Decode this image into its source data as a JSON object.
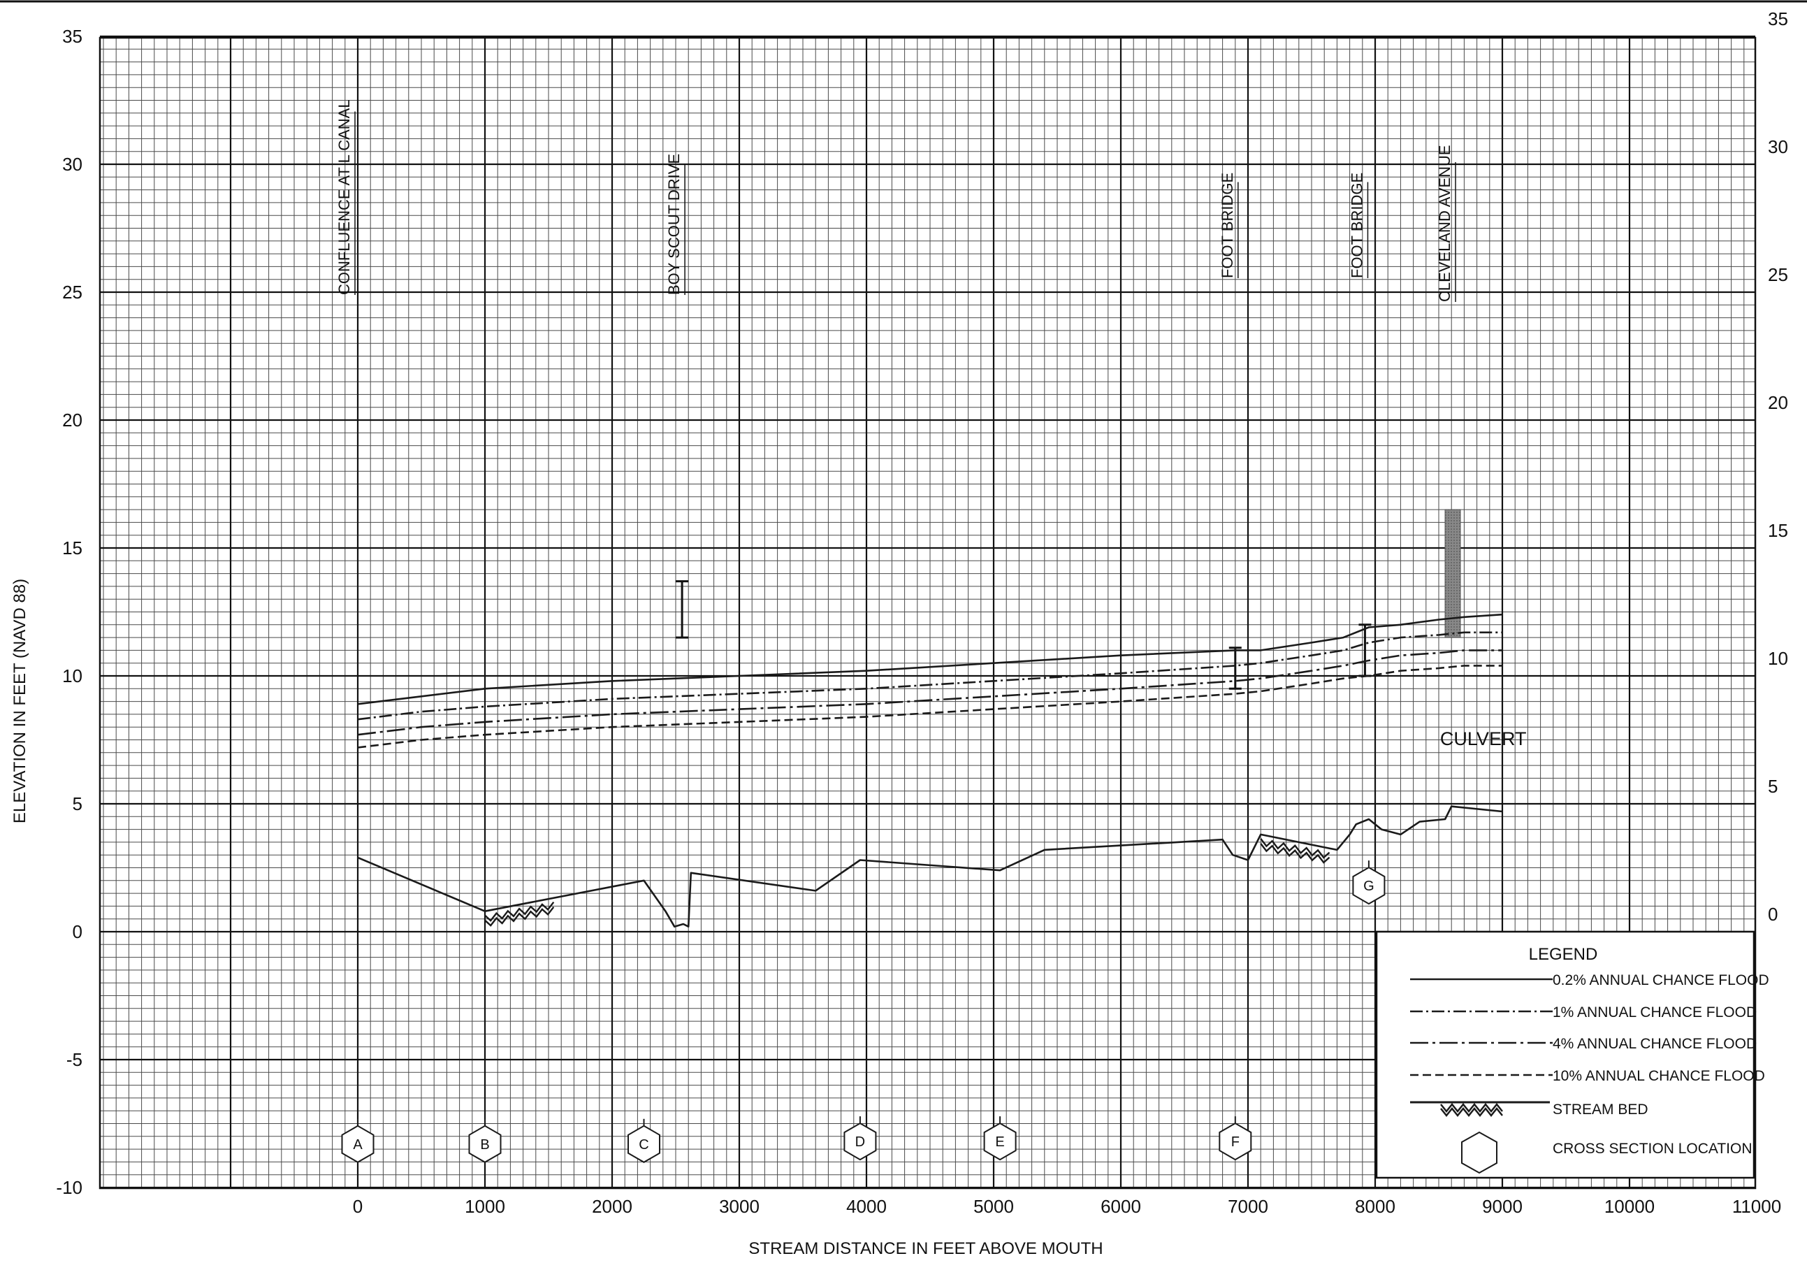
{
  "chart_data": {
    "type": "line",
    "title": "",
    "xlabel": "STREAM DISTANCE IN FEET ABOVE MOUTH",
    "ylabel": "ELEVATION IN FEET (NAVD 88)",
    "xlim": [
      -2050,
      11000
    ],
    "ylim": [
      -10,
      35
    ],
    "x_ticks": [
      0,
      1000,
      2000,
      3000,
      4000,
      5000,
      6000,
      7000,
      8000,
      9000,
      10000,
      11000
    ],
    "y_ticks": [
      -10,
      -5,
      0,
      5,
      10,
      15,
      20,
      25,
      30,
      35
    ],
    "y_tick_labels_left": [
      "-10",
      "-5",
      "0",
      "5",
      "10",
      "15",
      "20",
      "25",
      "30",
      "35"
    ],
    "y_tick_labels_right": [
      "",
      "",
      "0",
      "5",
      "10",
      "15",
      "20",
      "25",
      "30",
      "35"
    ],
    "grid": true,
    "series": [
      {
        "name": "0.2% ANNUAL CHANCE FLOOD",
        "style": "solid",
        "x": [
          0,
          500,
          1000,
          2000,
          3000,
          4000,
          5000,
          6000,
          6900,
          7100,
          7500,
          7750,
          7950,
          8200,
          8500,
          8700,
          9000
        ],
        "y": [
          8.9,
          9.2,
          9.5,
          9.8,
          10.0,
          10.2,
          10.5,
          10.8,
          11.0,
          11.0,
          11.3,
          11.5,
          11.9,
          12.0,
          12.2,
          12.3,
          12.4
        ]
      },
      {
        "name": "1% ANNUAL CHANCE FLOOD",
        "style": "dashdot",
        "x": [
          0,
          500,
          1000,
          2000,
          3000,
          4000,
          5000,
          6000,
          6900,
          7100,
          7500,
          7750,
          7950,
          8200,
          8500,
          8700,
          9000
        ],
        "y": [
          8.3,
          8.6,
          8.8,
          9.1,
          9.3,
          9.5,
          9.8,
          10.1,
          10.4,
          10.5,
          10.8,
          11.0,
          11.3,
          11.5,
          11.6,
          11.7,
          11.7
        ]
      },
      {
        "name": "4% ANNUAL CHANCE FLOOD",
        "style": "longdashdot",
        "x": [
          0,
          500,
          1000,
          2000,
          3000,
          4000,
          5000,
          6000,
          6900,
          7100,
          7500,
          7750,
          7950,
          8200,
          8500,
          8700,
          9000
        ],
        "y": [
          7.7,
          8.0,
          8.2,
          8.5,
          8.7,
          8.9,
          9.2,
          9.5,
          9.8,
          9.9,
          10.2,
          10.4,
          10.6,
          10.8,
          10.9,
          11.0,
          11.0
        ]
      },
      {
        "name": "10% ANNUAL CHANCE FLOOD",
        "style": "dashed",
        "x": [
          0,
          500,
          1000,
          2000,
          3000,
          4000,
          5000,
          6000,
          6900,
          7100,
          7500,
          7750,
          7950,
          8200,
          8500,
          8700,
          9000
        ],
        "y": [
          7.2,
          7.5,
          7.7,
          8.0,
          8.2,
          8.4,
          8.7,
          9.0,
          9.3,
          9.4,
          9.7,
          9.9,
          10.0,
          10.2,
          10.3,
          10.4,
          10.4
        ]
      },
      {
        "name": "STREAM BED",
        "style": "solid",
        "x": [
          0,
          1000,
          2250,
          2420,
          2490,
          2560,
          2600,
          2620,
          3600,
          3950,
          5050,
          5400,
          6800,
          6880,
          7000,
          7100,
          7700,
          7800,
          7850,
          7950,
          8050,
          8200,
          8350,
          8550,
          8600,
          9000
        ],
        "y": [
          2.9,
          0.8,
          2.0,
          0.8,
          0.2,
          0.3,
          0.2,
          2.3,
          1.6,
          2.8,
          2.4,
          3.2,
          3.6,
          3.0,
          2.8,
          3.8,
          3.2,
          3.8,
          4.2,
          4.4,
          4.0,
          3.8,
          4.3,
          4.4,
          4.9,
          4.7
        ]
      }
    ],
    "stream_bed_hatch": [
      {
        "x_start": 1000,
        "x_end": 1550
      },
      {
        "x_start": 7100,
        "x_end": 7650
      }
    ],
    "structures": [
      {
        "name": "BOY SCOUT DRIVE",
        "x": 2550,
        "y_bottom": 11.5,
        "y_top": 13.7,
        "style": "i-beam"
      },
      {
        "name": "FOOT BRIDGE",
        "x": 6900,
        "y_bottom": 9.5,
        "y_top": 11.1,
        "style": "i-beam"
      },
      {
        "name": "FOOT BRIDGE",
        "x": 7920,
        "y_bottom": 10.0,
        "y_top": 12.0,
        "style": "i-beam"
      },
      {
        "name": "CLEVELAND AVENUE",
        "x": 8610,
        "y_bottom": 11.5,
        "y_top": 16.5,
        "style": "culvert"
      }
    ],
    "station_labels": [
      {
        "text": "CONFLUENCE AT L CANAL",
        "x": 0
      },
      {
        "text": "BOY SCOUT DRIVE",
        "x": 2550
      },
      {
        "text": "FOOT BRIDGE",
        "x": 6900
      },
      {
        "text": "FOOT BRIDGE",
        "x": 7920
      },
      {
        "text": "CLEVELAND AVENUE",
        "x": 8610
      }
    ],
    "cross_sections": [
      {
        "letter": "A",
        "x": 0,
        "y": -8.3
      },
      {
        "letter": "B",
        "x": 1000,
        "y": -8.3
      },
      {
        "letter": "C",
        "x": 2250,
        "y": -8.3
      },
      {
        "letter": "D",
        "x": 3950,
        "y": -8.2
      },
      {
        "letter": "E",
        "x": 5050,
        "y": -8.2
      },
      {
        "letter": "F",
        "x": 6900,
        "y": -8.2
      },
      {
        "letter": "G",
        "x": 7950,
        "y": 1.8
      }
    ],
    "annotations": [
      {
        "text": "CULVERT",
        "x": 8850,
        "y": 7.3
      }
    ],
    "legend": {
      "title": "LEGEND",
      "position": "bottom-right",
      "entries": [
        "0.2% ANNUAL CHANCE FLOOD",
        "1% ANNUAL CHANCE FLOOD",
        "4% ANNUAL CHANCE FLOOD",
        "10% ANNUAL CHANCE FLOOD",
        "STREAM BED",
        "CROSS SECTION LOCATION"
      ]
    },
    "colors": {
      "line": "#1a1a1a",
      "grid_minor": "#3a3a3a",
      "grid_major": "#111111",
      "culvert": "#7a7a7a"
    }
  }
}
